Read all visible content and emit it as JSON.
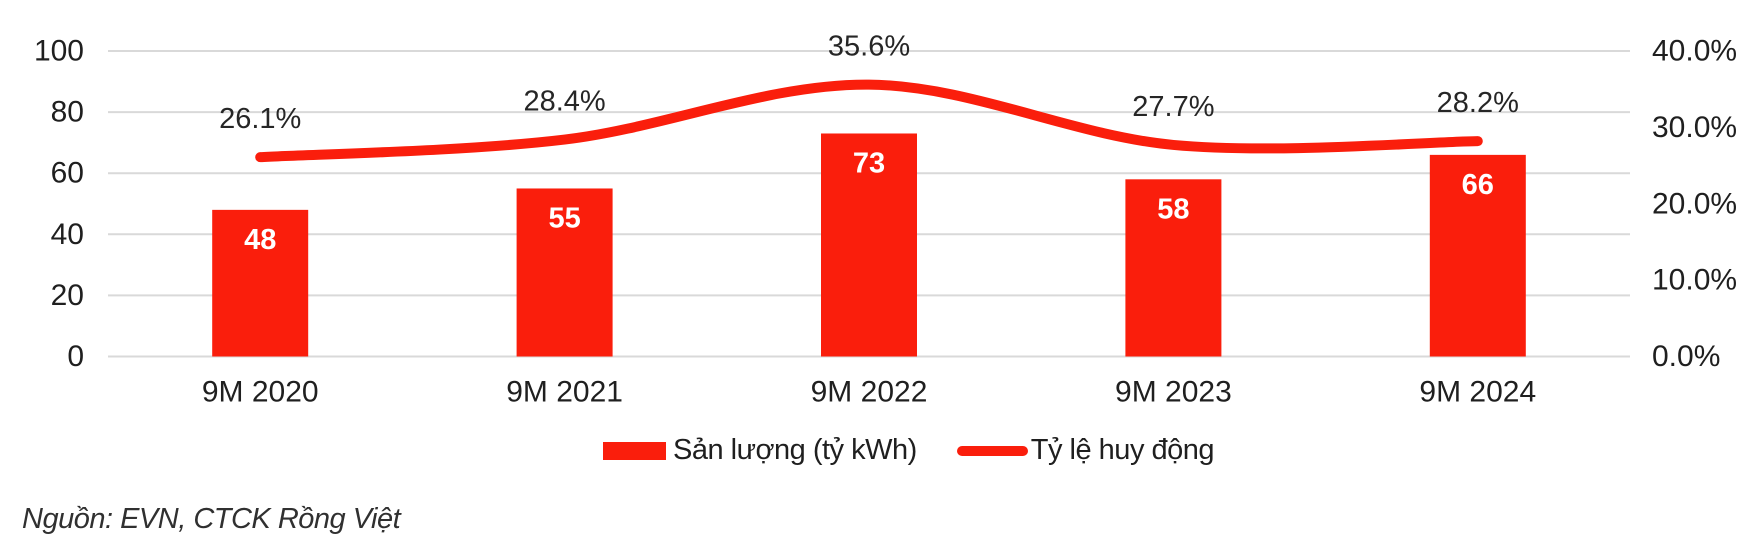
{
  "chart_data": {
    "type": "bar+line combo",
    "categories": [
      "9M 2020",
      "9M 2021",
      "9M 2022",
      "9M 2023",
      "9M 2024"
    ],
    "series": [
      {
        "name": "Sản lượng (tỷ kWh)",
        "type": "bar",
        "axis": "left",
        "values": [
          48,
          55,
          73,
          58,
          66
        ],
        "data_labels": [
          "48",
          "55",
          "73",
          "58",
          "66"
        ]
      },
      {
        "name": "Tỷ lệ huy động",
        "type": "line",
        "axis": "right",
        "values": [
          26.1,
          28.4,
          35.6,
          27.7,
          28.2
        ],
        "data_labels": [
          "26.1%",
          "28.4%",
          "35.6%",
          "27.7%",
          "28.2%"
        ]
      }
    ],
    "left_axis": {
      "min": 0,
      "max": 100,
      "ticks": [
        {
          "value": 0,
          "label": "0"
        },
        {
          "value": 20,
          "label": "20"
        },
        {
          "value": 40,
          "label": "40"
        },
        {
          "value": 60,
          "label": "60"
        },
        {
          "value": 80,
          "label": "80"
        },
        {
          "value": 100,
          "label": "100"
        }
      ]
    },
    "right_axis": {
      "min": 0,
      "max": 40,
      "ticks": [
        {
          "value": 0,
          "label": "0.0%"
        },
        {
          "value": 10,
          "label": "10.0%"
        },
        {
          "value": 20,
          "label": "20.0%"
        },
        {
          "value": 30,
          "label": "30.0%"
        },
        {
          "value": 40,
          "label": "40.0%"
        }
      ]
    },
    "grid": true,
    "legend_position": "bottom"
  },
  "legend": {
    "items": [
      {
        "label": "Sản lượng (tỷ kWh)",
        "swatch": "rect"
      },
      {
        "label": "Tỷ lệ huy động",
        "swatch": "line"
      }
    ]
  },
  "source": {
    "text": "Nguồn: EVN, CTCK Rồng Việt"
  },
  "colors": {
    "accent_red": "#fa1e0c",
    "gridline": "#d9d9d9",
    "axis_text": "#1f1f1f",
    "point_label_text": "#262626",
    "bar_value_text": "#ffffff"
  }
}
